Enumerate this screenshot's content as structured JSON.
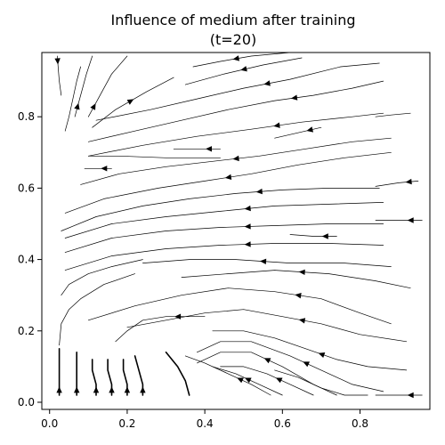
{
  "chart_data": {
    "type": "streamplot",
    "title_line1": "Influence of medium after training",
    "title_line2": "(t=20)",
    "xlabel": "",
    "ylabel": "",
    "xlim": [
      -0.02,
      0.98
    ],
    "ylim": [
      -0.02,
      0.98
    ],
    "xticks": [
      "0.0",
      "0.2",
      "0.4",
      "0.6",
      "0.8"
    ],
    "xtick_values": [
      0.0,
      0.2,
      0.4,
      0.6,
      0.8
    ],
    "yticks": [
      "0.0",
      "0.2",
      "0.4",
      "0.6",
      "0.8"
    ],
    "ytick_values": [
      0.0,
      0.2,
      0.4,
      0.6,
      0.8
    ],
    "grid": false,
    "line_color": "#000000",
    "streamlines": [
      {
        "points": [
          [
            0.02,
            0.97
          ],
          [
            0.022,
            0.94
          ],
          [
            0.025,
            0.9
          ],
          [
            0.03,
            0.86
          ]
        ],
        "arrow": 1,
        "dir": "down"
      },
      {
        "points": [
          [
            0.065,
            0.8
          ],
          [
            0.08,
            0.86
          ],
          [
            0.095,
            0.92
          ],
          [
            0.11,
            0.97
          ]
        ],
        "arrow": 1,
        "dir": "up"
      },
      {
        "points": [
          [
            0.1,
            0.8
          ],
          [
            0.13,
            0.86
          ],
          [
            0.16,
            0.92
          ],
          [
            0.2,
            0.97
          ]
        ],
        "arrow": 1,
        "dir": "up"
      },
      {
        "points": [
          [
            0.11,
            0.77
          ],
          [
            0.17,
            0.82
          ],
          [
            0.25,
            0.87
          ],
          [
            0.32,
            0.91
          ]
        ],
        "arrow": 2,
        "dir": "up"
      },
      {
        "points": [
          [
            0.62,
            0.98
          ],
          [
            0.52,
            0.97
          ],
          [
            0.44,
            0.955
          ],
          [
            0.37,
            0.94
          ]
        ],
        "arrow": 2,
        "dir": "down"
      },
      {
        "points": [
          [
            0.65,
            0.965
          ],
          [
            0.55,
            0.945
          ],
          [
            0.45,
            0.92
          ],
          [
            0.35,
            0.89
          ]
        ],
        "arrow": 2,
        "dir": "down"
      },
      {
        "points": [
          [
            0.85,
            0.95
          ],
          [
            0.75,
            0.94
          ],
          [
            0.62,
            0.905
          ],
          [
            0.5,
            0.88
          ],
          [
            0.38,
            0.85
          ],
          [
            0.26,
            0.82
          ],
          [
            0.12,
            0.79
          ]
        ],
        "arrow": 3,
        "dir": "left"
      },
      {
        "points": [
          [
            0.86,
            0.9
          ],
          [
            0.78,
            0.88
          ],
          [
            0.68,
            0.86
          ],
          [
            0.58,
            0.845
          ],
          [
            0.46,
            0.82
          ],
          [
            0.34,
            0.79
          ],
          [
            0.22,
            0.76
          ],
          [
            0.1,
            0.73
          ]
        ],
        "arrow": 3,
        "dir": "left"
      },
      {
        "points": [
          [
            0.93,
            0.81
          ],
          [
            0.88,
            0.805
          ],
          [
            0.84,
            0.8
          ]
        ],
        "arrow": 0,
        "dir": "left"
      },
      {
        "points": [
          [
            0.86,
            0.81
          ],
          [
            0.78,
            0.8
          ],
          [
            0.65,
            0.785
          ],
          [
            0.52,
            0.765
          ],
          [
            0.38,
            0.745
          ],
          [
            0.24,
            0.72
          ],
          [
            0.1,
            0.69
          ]
        ],
        "arrow": 3,
        "dir": "left"
      },
      {
        "points": [
          [
            0.7,
            0.77
          ],
          [
            0.64,
            0.755
          ],
          [
            0.58,
            0.74
          ]
        ],
        "arrow": 1,
        "dir": "left"
      },
      {
        "points": [
          [
            0.88,
            0.74
          ],
          [
            0.78,
            0.73
          ],
          [
            0.66,
            0.71
          ],
          [
            0.54,
            0.69
          ],
          [
            0.42,
            0.675
          ],
          [
            0.3,
            0.66
          ],
          [
            0.18,
            0.64
          ],
          [
            0.08,
            0.61
          ]
        ],
        "arrow": 4,
        "dir": "left"
      },
      {
        "points": [
          [
            0.44,
            0.71
          ],
          [
            0.38,
            0.71
          ],
          [
            0.32,
            0.71
          ]
        ],
        "arrow": 1,
        "dir": "left"
      },
      {
        "points": [
          [
            0.44,
            0.685
          ],
          [
            0.3,
            0.685
          ],
          [
            0.18,
            0.69
          ],
          [
            0.1,
            0.69
          ]
        ],
        "arrow": 0,
        "dir": "left"
      },
      {
        "points": [
          [
            0.16,
            0.655
          ],
          [
            0.12,
            0.655
          ],
          [
            0.09,
            0.655
          ]
        ],
        "arrow": 1,
        "dir": "left"
      },
      {
        "points": [
          [
            0.88,
            0.7
          ],
          [
            0.76,
            0.685
          ],
          [
            0.64,
            0.665
          ],
          [
            0.52,
            0.64
          ],
          [
            0.4,
            0.62
          ],
          [
            0.28,
            0.6
          ],
          [
            0.14,
            0.57
          ],
          [
            0.04,
            0.53
          ]
        ],
        "arrow": 4,
        "dir": "left"
      },
      {
        "points": [
          [
            0.95,
            0.62
          ],
          [
            0.9,
            0.615
          ],
          [
            0.84,
            0.605
          ]
        ],
        "arrow": 1,
        "dir": "left"
      },
      {
        "points": [
          [
            0.85,
            0.6
          ],
          [
            0.72,
            0.6
          ],
          [
            0.6,
            0.595
          ],
          [
            0.48,
            0.585
          ],
          [
            0.36,
            0.57
          ],
          [
            0.24,
            0.55
          ],
          [
            0.12,
            0.52
          ],
          [
            0.03,
            0.48
          ]
        ],
        "arrow": 3,
        "dir": "left"
      },
      {
        "points": [
          [
            0.86,
            0.56
          ],
          [
            0.72,
            0.555
          ],
          [
            0.58,
            0.55
          ],
          [
            0.44,
            0.535
          ],
          [
            0.3,
            0.52
          ],
          [
            0.16,
            0.5
          ],
          [
            0.04,
            0.46
          ]
        ],
        "arrow": 3,
        "dir": "left"
      },
      {
        "points": [
          [
            0.96,
            0.51
          ],
          [
            0.9,
            0.51
          ],
          [
            0.84,
            0.51
          ]
        ],
        "arrow": 1,
        "dir": "left"
      },
      {
        "points": [
          [
            0.86,
            0.5
          ],
          [
            0.72,
            0.5
          ],
          [
            0.58,
            0.495
          ],
          [
            0.44,
            0.49
          ],
          [
            0.3,
            0.48
          ],
          [
            0.16,
            0.46
          ],
          [
            0.04,
            0.42
          ]
        ],
        "arrow": 3,
        "dir": "left"
      },
      {
        "points": [
          [
            0.74,
            0.465
          ],
          [
            0.68,
            0.465
          ],
          [
            0.62,
            0.47
          ]
        ],
        "arrow": 1,
        "dir": "left"
      },
      {
        "points": [
          [
            0.86,
            0.44
          ],
          [
            0.72,
            0.445
          ],
          [
            0.58,
            0.445
          ],
          [
            0.44,
            0.44
          ],
          [
            0.3,
            0.43
          ],
          [
            0.16,
            0.41
          ],
          [
            0.04,
            0.37
          ]
        ],
        "arrow": 3,
        "dir": "left"
      },
      {
        "points": [
          [
            0.88,
            0.38
          ],
          [
            0.76,
            0.39
          ],
          [
            0.62,
            0.39
          ],
          [
            0.48,
            0.4
          ],
          [
            0.36,
            0.4
          ],
          [
            0.24,
            0.39
          ]
        ],
        "arrow": 3,
        "dir": "left"
      },
      {
        "points": [
          [
            0.93,
            0.32
          ],
          [
            0.84,
            0.34
          ],
          [
            0.72,
            0.36
          ],
          [
            0.58,
            0.37
          ],
          [
            0.46,
            0.36
          ],
          [
            0.34,
            0.35
          ]
        ],
        "arrow": 3,
        "dir": "left"
      },
      {
        "points": [
          [
            0.88,
            0.22
          ],
          [
            0.8,
            0.25
          ],
          [
            0.7,
            0.29
          ],
          [
            0.58,
            0.31
          ],
          [
            0.46,
            0.32
          ],
          [
            0.34,
            0.3
          ],
          [
            0.22,
            0.27
          ],
          [
            0.1,
            0.23
          ]
        ],
        "arrow": 3,
        "dir": "down"
      },
      {
        "points": [
          [
            0.92,
            0.17
          ],
          [
            0.8,
            0.19
          ],
          [
            0.7,
            0.22
          ],
          [
            0.6,
            0.24
          ],
          [
            0.5,
            0.26
          ],
          [
            0.4,
            0.25
          ],
          [
            0.3,
            0.23
          ],
          [
            0.2,
            0.21
          ]
        ],
        "arrow": 3,
        "dir": "down"
      },
      {
        "points": [
          [
            0.4,
            0.24
          ],
          [
            0.36,
            0.24
          ],
          [
            0.3,
            0.24
          ],
          [
            0.24,
            0.23
          ],
          [
            0.2,
            0.2
          ],
          [
            0.17,
            0.17
          ]
        ],
        "arrow": 2,
        "dir": "down"
      },
      {
        "points": [
          [
            0.92,
            0.09
          ],
          [
            0.82,
            0.1
          ],
          [
            0.74,
            0.12
          ],
          [
            0.66,
            0.15
          ],
          [
            0.58,
            0.18
          ],
          [
            0.5,
            0.2
          ],
          [
            0.42,
            0.2
          ]
        ],
        "arrow": 3,
        "dir": "down"
      },
      {
        "points": [
          [
            0.86,
            0.03
          ],
          [
            0.78,
            0.05
          ],
          [
            0.7,
            0.09
          ],
          [
            0.62,
            0.13
          ],
          [
            0.52,
            0.17
          ],
          [
            0.44,
            0.17
          ],
          [
            0.38,
            0.14
          ]
        ],
        "arrow": 3,
        "dir": "down"
      },
      {
        "points": [
          [
            0.74,
            0.02
          ],
          [
            0.68,
            0.05
          ],
          [
            0.6,
            0.1
          ],
          [
            0.52,
            0.14
          ],
          [
            0.44,
            0.14
          ],
          [
            0.38,
            0.11
          ]
        ],
        "arrow": 3,
        "dir": "down"
      },
      {
        "points": [
          [
            0.68,
            0.02
          ],
          [
            0.62,
            0.05
          ],
          [
            0.56,
            0.08
          ],
          [
            0.5,
            0.1
          ],
          [
            0.44,
            0.1
          ]
        ],
        "arrow": 2,
        "dir": "down"
      },
      {
        "points": [
          [
            0.6,
            0.02
          ],
          [
            0.54,
            0.05
          ],
          [
            0.48,
            0.08
          ],
          [
            0.42,
            0.1
          ]
        ],
        "arrow": 2,
        "dir": "down"
      },
      {
        "points": [
          [
            0.82,
            0.02
          ],
          [
            0.76,
            0.02
          ],
          [
            0.7,
            0.04
          ],
          [
            0.64,
            0.07
          ],
          [
            0.58,
            0.09
          ]
        ],
        "arrow": 0,
        "dir": "down"
      },
      {
        "points": [
          [
            0.96,
            0.02
          ],
          [
            0.9,
            0.02
          ],
          [
            0.84,
            0.02
          ]
        ],
        "arrow": 1,
        "dir": "left"
      },
      {
        "points": [
          [
            0.57,
            0.02
          ],
          [
            0.52,
            0.05
          ],
          [
            0.46,
            0.08
          ],
          [
            0.4,
            0.11
          ],
          [
            0.35,
            0.13
          ]
        ],
        "arrow": 2,
        "dir": "down"
      },
      {
        "points": [
          [
            0.36,
            0.02
          ],
          [
            0.35,
            0.06
          ],
          [
            0.33,
            0.1
          ],
          [
            0.3,
            0.14
          ]
        ],
        "arrow": 0,
        "dir": "up"
      },
      {
        "points": [
          [
            0.24,
            0.02
          ],
          [
            0.24,
            0.05
          ],
          [
            0.23,
            0.09
          ],
          [
            0.22,
            0.13
          ]
        ],
        "arrow": 1,
        "dir": "up"
      },
      {
        "points": [
          [
            0.2,
            0.02
          ],
          [
            0.2,
            0.05
          ],
          [
            0.19,
            0.09
          ],
          [
            0.19,
            0.12
          ]
        ],
        "arrow": 1,
        "dir": "up"
      },
      {
        "points": [
          [
            0.16,
            0.02
          ],
          [
            0.16,
            0.05
          ],
          [
            0.15,
            0.09
          ],
          [
            0.15,
            0.12
          ]
        ],
        "arrow": 1,
        "dir": "up"
      },
      {
        "points": [
          [
            0.12,
            0.02
          ],
          [
            0.12,
            0.05
          ],
          [
            0.11,
            0.09
          ],
          [
            0.11,
            0.12
          ]
        ],
        "arrow": 1,
        "dir": "up"
      },
      {
        "points": [
          [
            0.07,
            0.02
          ],
          [
            0.07,
            0.05
          ],
          [
            0.07,
            0.09
          ],
          [
            0.07,
            0.14
          ]
        ],
        "arrow": 1,
        "dir": "up"
      },
      {
        "points": [
          [
            0.025,
            0.02
          ],
          [
            0.025,
            0.05
          ],
          [
            0.025,
            0.09
          ],
          [
            0.025,
            0.15
          ]
        ],
        "arrow": 1,
        "dir": "up"
      },
      {
        "points": [
          [
            0.025,
            0.16
          ],
          [
            0.03,
            0.22
          ],
          [
            0.05,
            0.26
          ],
          [
            0.08,
            0.29
          ],
          [
            0.14,
            0.33
          ],
          [
            0.22,
            0.36
          ]
        ],
        "arrow": 0,
        "dir": "up"
      },
      {
        "points": [
          [
            0.03,
            0.3
          ],
          [
            0.05,
            0.33
          ],
          [
            0.1,
            0.36
          ],
          [
            0.16,
            0.38
          ],
          [
            0.24,
            0.4
          ]
        ],
        "arrow": 0,
        "dir": "up"
      },
      {
        "points": [
          [
            0.04,
            0.76
          ],
          [
            0.05,
            0.8
          ],
          [
            0.06,
            0.85
          ],
          [
            0.07,
            0.9
          ],
          [
            0.08,
            0.94
          ]
        ],
        "arrow": 0,
        "dir": "up"
      }
    ]
  }
}
